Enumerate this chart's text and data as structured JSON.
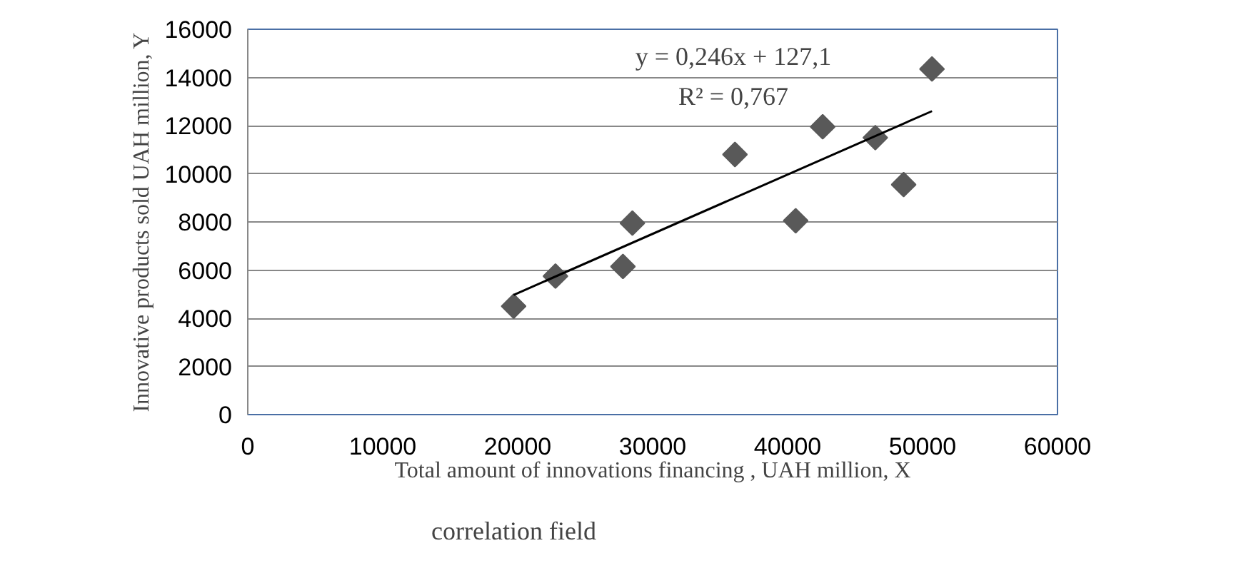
{
  "chart_data": {
    "type": "scatter",
    "xlabel": "Total amount of innovations financing , UAH million, X",
    "ylabel": "Innovative products sold UAH million, Y",
    "xlim": [
      0,
      60000
    ],
    "xticks": [
      0,
      10000,
      20000,
      30000,
      40000,
      50000,
      60000
    ],
    "ylim": [
      0,
      16000
    ],
    "yticks": [
      0,
      2000,
      4000,
      6000,
      8000,
      10000,
      12000,
      14000,
      16000
    ],
    "grid": "y",
    "legend": "bottom left",
    "series": [
      {
        "name": "correlation field",
        "marker": "diamond",
        "color": "#595959",
        "x": [
          19700,
          22800,
          27800,
          28500,
          36100,
          40600,
          42600,
          46500,
          48600,
          50700
        ],
        "values": [
          4500,
          5750,
          6150,
          7950,
          10800,
          8050,
          11950,
          11500,
          9550,
          14350
        ]
      },
      {
        "type": "line",
        "color": "#000000",
        "x": [
          19700,
          50700
        ],
        "values": [
          4970,
          12600
        ]
      }
    ],
    "annotations": [
      "y = 0,246x + 127,1",
      "R² = 0,767"
    ]
  }
}
